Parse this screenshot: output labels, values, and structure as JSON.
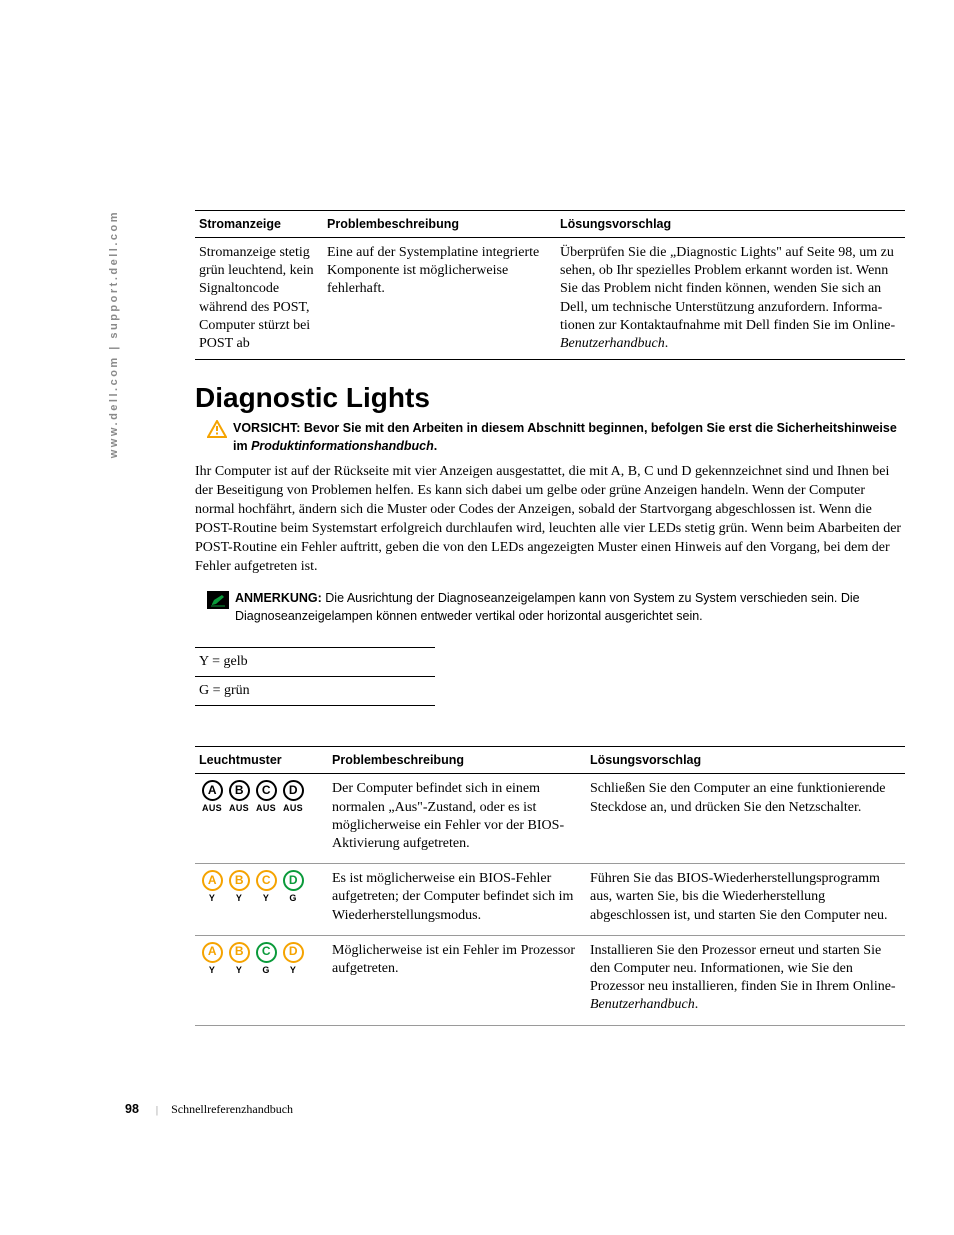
{
  "sidebar_url": "www.dell.com | support.dell.com",
  "table1": {
    "headers": {
      "h1": "Stromanzeige",
      "h2": "Problembeschreibung",
      "h3": "Lösungsvorschlag"
    },
    "row": {
      "c1": "Stromanzeige stetig grün leuchtend, kein Signaltoncode während des POST, Computer stürzt bei POST ab",
      "c2": "Eine auf der Systemplatine integrierte Komponente ist möglicherweise fehlerhaft.",
      "c3a": "Überprüfen Sie die „Diagnostic Lights\" auf Seite 98, um zu sehen, ob Ihr spezielles Problem erkannt worden ist. Wenn Sie das Problem nicht finden können, wenden Sie sich an Dell, um technische Unterstützung anzufordern. Informa­tionen zur Kontaktaufnahme mit Dell finden Sie im Online-",
      "c3b": "Benutzerhandbuch",
      "c3c": "."
    }
  },
  "heading": "Diagnostic Lights",
  "warning": {
    "label": "VORSICHT: ",
    "text": "Bevor Sie mit den Arbeiten in diesem Abschnitt beginnen, befolgen Sie erst die Sicherheitshinweise im ",
    "book": "Produktinformationshandbuch",
    "tail": "."
  },
  "para": "Ihr Computer ist auf der Rückseite mit vier Anzeigen ausgestattet, die mit A, B, C und D gekennzeichnet sind und Ihnen bei der Beseitigung von Problemen helfen. Es kann sich dabei um gelbe oder grüne Anzeigen handeln. Wenn der Computer normal hochfährt, ändern sich die Muster oder Codes der Anzeigen, sobald der Startvorgang abgeschlossen ist. Wenn die POST-Routine beim Systemstart erfolgreich durchlaufen wird, leuchten alle vier LEDs stetig grün. Wenn beim Abarbeiten der POST-Routine ein Fehler auftritt, geben die von den LEDs angezeigten Muster einen Hinweis auf den Vorgang, bei dem der Fehler aufgetreten ist.",
  "note": {
    "label": "ANMERKUNG: ",
    "text": "Die Ausrichtung der Diagnoseanzeigelampen kann von System zu System verschieden sein. Die Diagnoseanzeigelampen können entweder vertikal oder horizontal ausgerichtet sein."
  },
  "legend": {
    "l1": "Y = gelb",
    "l2": "G = grün"
  },
  "table2": {
    "headers": {
      "h1": "Leuchtmuster",
      "h2": "Problembeschreibung",
      "h3": "Lösungsvorschlag"
    },
    "rows": [
      {
        "leds": [
          {
            "letter": "A",
            "cls": "led-off",
            "lbl": "AUS"
          },
          {
            "letter": "B",
            "cls": "led-off",
            "lbl": "AUS"
          },
          {
            "letter": "C",
            "cls": "led-off",
            "lbl": "AUS"
          },
          {
            "letter": "D",
            "cls": "led-off",
            "lbl": "AUS"
          }
        ],
        "desc": "Der Computer befindet sich in einem normalen „Aus\"-Zustand, oder es ist möglicherweise ein Fehler vor der BIOS-Aktivierung aufgetreten.",
        "fix": "Schließen Sie den Computer an eine funk­tionierende Steckdose an, und drücken Sie den Netzschalter.",
        "fix_ital": "",
        "fix_tail": ""
      },
      {
        "leds": [
          {
            "letter": "A",
            "cls": "led-y",
            "lbl": "Y"
          },
          {
            "letter": "B",
            "cls": "led-y",
            "lbl": "Y"
          },
          {
            "letter": "C",
            "cls": "led-y",
            "lbl": "Y"
          },
          {
            "letter": "D",
            "cls": "led-g",
            "lbl": "G"
          }
        ],
        "desc": "Es ist möglicherweise ein BIOS-Fehler aufgetreten; der Computer befindet sich im Wiederherstellungsmodus.",
        "fix": "Führen Sie das BIOS-Wiederherstellungs­programm aus, warten Sie, bis die Wie­derherstellung abgeschlossen ist, und starten Sie den Computer neu.",
        "fix_ital": "",
        "fix_tail": ""
      },
      {
        "leds": [
          {
            "letter": "A",
            "cls": "led-y",
            "lbl": "Y"
          },
          {
            "letter": "B",
            "cls": "led-y",
            "lbl": "Y"
          },
          {
            "letter": "C",
            "cls": "led-g",
            "lbl": "G"
          },
          {
            "letter": "D",
            "cls": "led-y",
            "lbl": "Y"
          }
        ],
        "desc": "Möglicherweise ist ein Fehler im Prozessor aufgetreten.",
        "fix": "Installieren Sie den Prozessor erneut und starten Sie den Computer neu. Infor­mationen, wie Sie den Prozessor neu installieren, finden Sie in Ihrem Online-",
        "fix_ital": "Benutzerhandbuch",
        "fix_tail": "."
      }
    ]
  },
  "footer": {
    "page": "98",
    "title": "Schnellreferenzhandbuch"
  },
  "colors": {
    "yellow": "#f5a300",
    "green": "#0a9a3a",
    "warning_triangle": "#f5a300",
    "pencil": "#0a9a3a"
  }
}
